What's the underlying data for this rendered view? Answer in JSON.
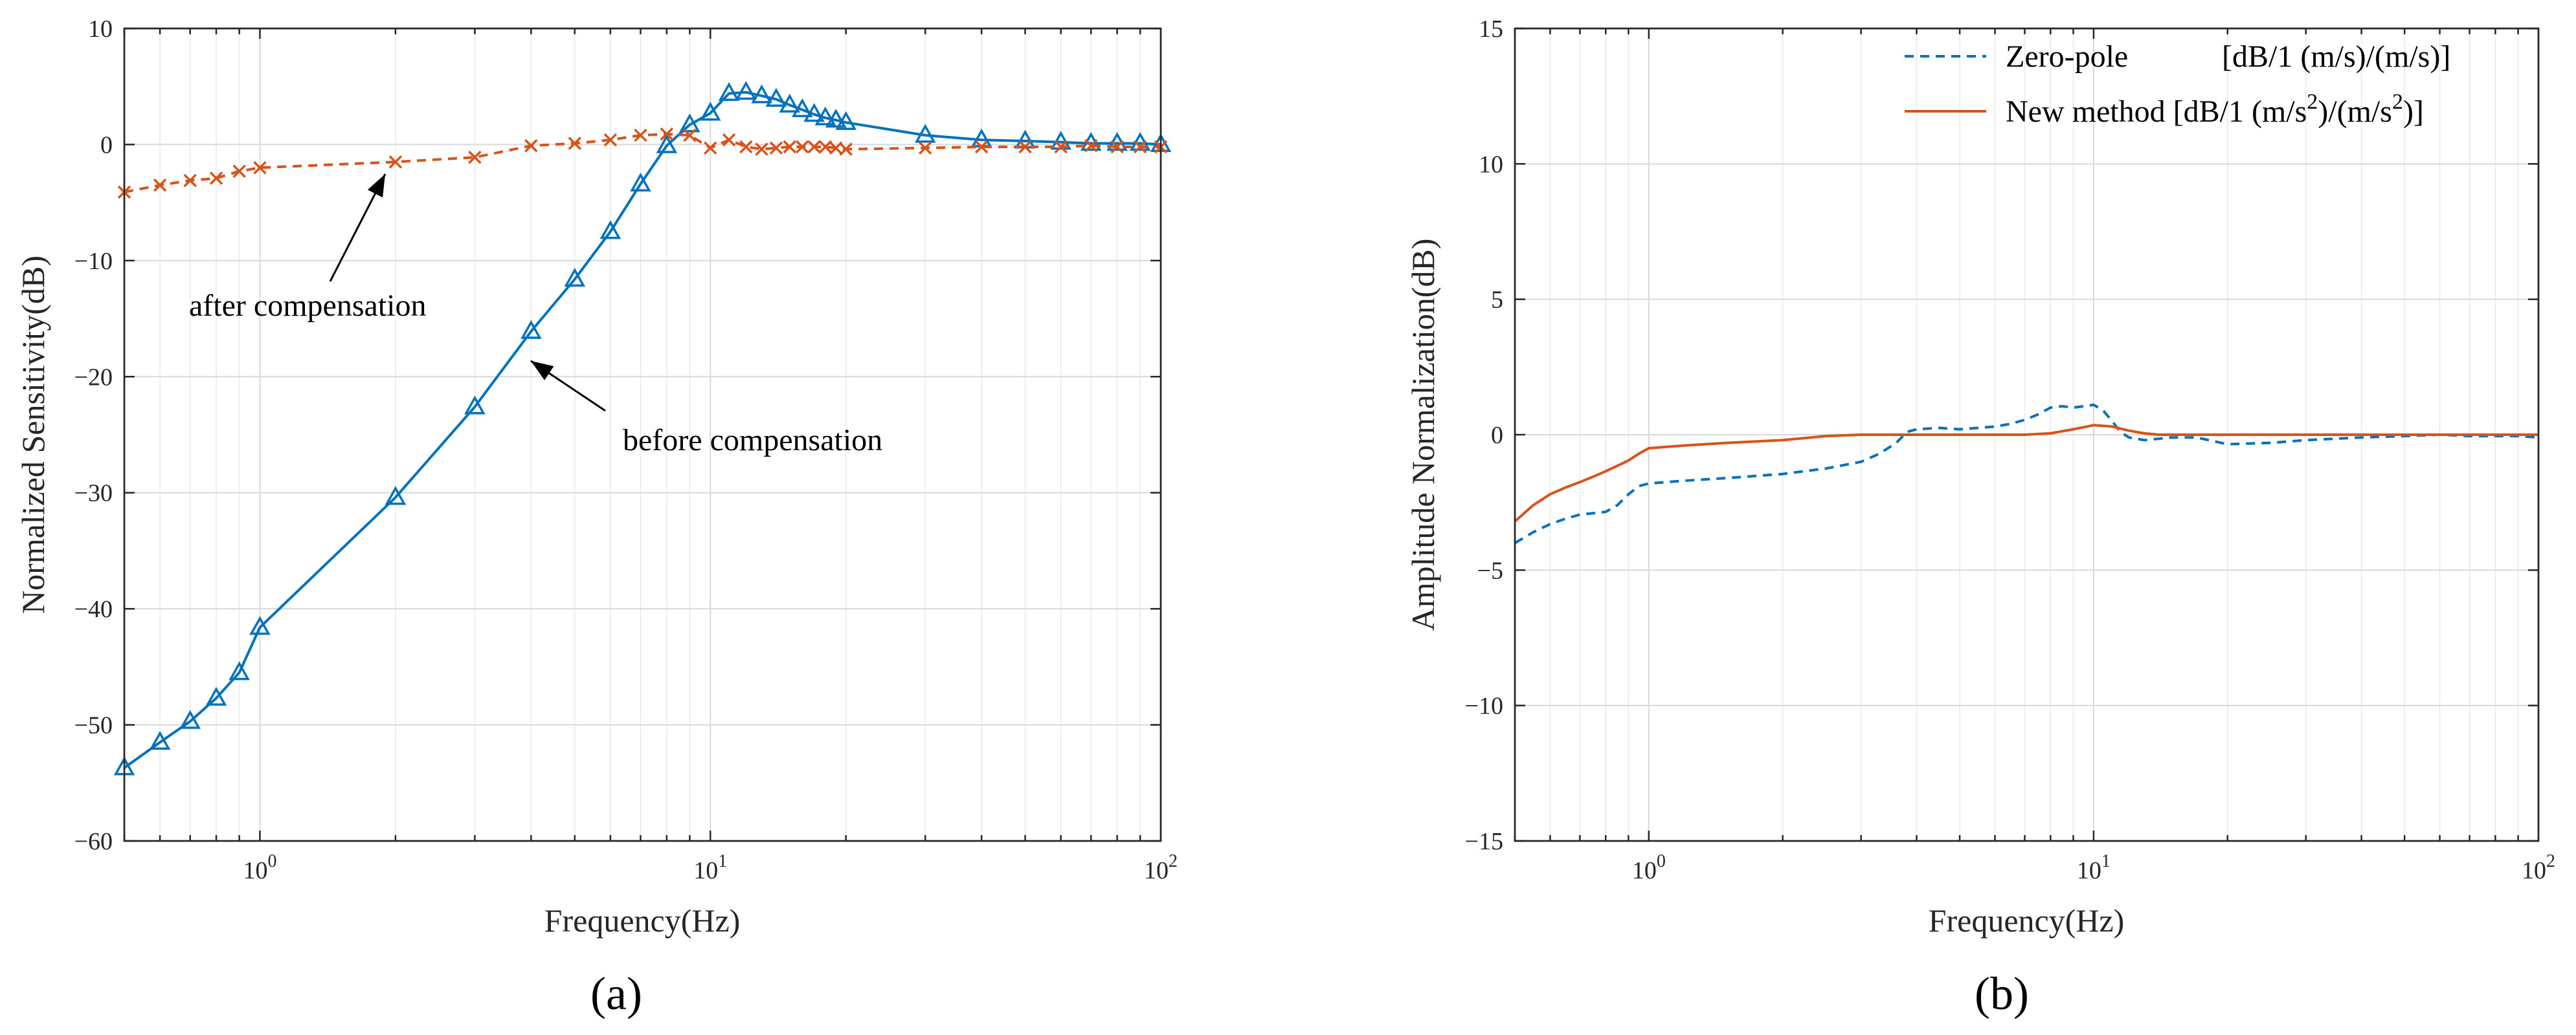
{
  "chart_data": [
    {
      "type": "line",
      "panel_label": "(a)",
      "xlabel": "Frequency(Hz)",
      "ylabel": "Normalized Sensitivity(dB)",
      "xscale": "log",
      "xlim": [
        0.5,
        100
      ],
      "ylim": [
        -60,
        10
      ],
      "yticks": [
        10,
        0,
        -10,
        -20,
        -30,
        -40,
        -50,
        -60
      ],
      "ytick_labels": [
        "10",
        "0",
        "−10",
        "−20",
        "−30",
        "−40",
        "−50",
        "−60"
      ],
      "xticks": [
        1,
        10,
        100
      ],
      "xtick_bases": [
        "10",
        "10",
        "10"
      ],
      "xtick_exponents": [
        "0",
        "1",
        "2"
      ],
      "grid": true,
      "series": [
        {
          "name": "before compensation",
          "color": "#0072BD",
          "line_style": "solid",
          "marker": "triangle",
          "x": [
            0.5,
            0.6,
            0.7,
            0.8,
            0.9,
            1,
            2,
            3,
            4,
            5,
            6,
            7,
            8,
            9,
            10,
            11,
            12,
            13,
            14,
            15,
            16,
            17,
            18,
            19,
            20,
            30,
            40,
            50,
            60,
            70,
            80,
            90,
            100
          ],
          "y": [
            -53.7,
            -51.5,
            -49.7,
            -47.7,
            -45.5,
            -41.6,
            -30.4,
            -22.6,
            -16.1,
            -11.6,
            -7.5,
            -3.4,
            -0.1,
            1.7,
            2.7,
            4.4,
            4.5,
            4.2,
            3.9,
            3.4,
            3.0,
            2.6,
            2.3,
            2.1,
            1.9,
            0.8,
            0.4,
            0.3,
            0.2,
            0.1,
            0.1,
            0.1,
            0.0
          ]
        },
        {
          "name": "after compensation",
          "color": "#D95319",
          "line_style": "dashed",
          "marker": "x",
          "x": [
            0.5,
            0.6,
            0.7,
            0.8,
            0.9,
            1,
            2,
            3,
            4,
            5,
            6,
            7,
            8,
            9,
            10,
            11,
            12,
            13,
            14,
            15,
            16,
            17,
            18,
            19,
            20,
            30,
            40,
            50,
            60,
            70,
            80,
            90,
            100
          ],
          "y": [
            -4.1,
            -3.5,
            -3.1,
            -2.9,
            -2.3,
            -2.0,
            -1.5,
            -1.1,
            -0.1,
            0.1,
            0.4,
            0.8,
            0.9,
            0.8,
            -0.3,
            0.4,
            -0.2,
            -0.4,
            -0.3,
            -0.2,
            -0.2,
            -0.2,
            -0.2,
            -0.3,
            -0.4,
            -0.3,
            -0.2,
            -0.2,
            -0.2,
            -0.1,
            -0.2,
            -0.2,
            -0.2
          ]
        }
      ],
      "annotations": [
        {
          "text": "after compensation",
          "arrow_to": [
            2,
            -1.5
          ]
        },
        {
          "text": "before compensation",
          "arrow_to": [
            4,
            -16.1
          ]
        }
      ]
    },
    {
      "type": "line",
      "panel_label": "(b)",
      "xlabel": "Frequency(Hz)",
      "ylabel": "Amplitude Normalization(dB)",
      "xscale": "log",
      "xlim": [
        0.5,
        100
      ],
      "ylim": [
        -15,
        15
      ],
      "yticks": [
        15,
        10,
        5,
        0,
        -5,
        -10,
        -15
      ],
      "ytick_labels": [
        "15",
        "10",
        "5",
        "0",
        "−5",
        "−10",
        "−15"
      ],
      "xticks": [
        1,
        10,
        100
      ],
      "xtick_bases": [
        "10",
        "10",
        "10"
      ],
      "xtick_exponents": [
        "0",
        "1",
        "2"
      ],
      "grid": true,
      "legend_position": "top-right",
      "legend": [
        {
          "label": "Zero-pole",
          "unit": "[dB/1 (m/s)/(m/s)]"
        },
        {
          "label": "New method",
          "unit_pre": "[dB/1 (m/s",
          "sup1": "2",
          "unit_mid": ")/(m/s",
          "sup2": "2",
          "unit_post": ")]"
        }
      ],
      "series": [
        {
          "name": "Zero-pole",
          "color": "#0072BD",
          "line_style": "dashed",
          "x": [
            0.5,
            0.55,
            0.6,
            0.65,
            0.7,
            0.75,
            0.8,
            0.85,
            0.9,
            0.95,
            1.0,
            1.2,
            1.5,
            2,
            2.5,
            3,
            3.3,
            3.6,
            3.8,
            4,
            4.5,
            5,
            5.5,
            6,
            6.5,
            7,
            7.5,
            8,
            8.5,
            9,
            9.5,
            10,
            10.5,
            11,
            11.5,
            12,
            13,
            14,
            15,
            17,
            20,
            25,
            30,
            40,
            50,
            60,
            70,
            80,
            90,
            100
          ],
          "y": [
            -4.0,
            -3.6,
            -3.3,
            -3.1,
            -2.95,
            -2.9,
            -2.85,
            -2.6,
            -2.2,
            -1.9,
            -1.8,
            -1.7,
            -1.6,
            -1.45,
            -1.25,
            -1.0,
            -0.7,
            -0.3,
            0.1,
            0.2,
            0.25,
            0.2,
            0.25,
            0.3,
            0.4,
            0.55,
            0.75,
            1.0,
            1.05,
            1.0,
            1.05,
            1.1,
            0.9,
            0.5,
            0.1,
            -0.1,
            -0.2,
            -0.15,
            -0.1,
            -0.1,
            -0.35,
            -0.3,
            -0.2,
            -0.1,
            -0.05,
            0.0,
            -0.05,
            -0.05,
            -0.05,
            -0.1
          ]
        },
        {
          "name": "New method",
          "color": "#D95319",
          "line_style": "solid",
          "x": [
            0.5,
            0.55,
            0.6,
            0.65,
            0.7,
            0.75,
            0.8,
            0.85,
            0.9,
            0.95,
            1.0,
            1.2,
            1.5,
            2,
            2.5,
            3,
            4,
            5,
            6,
            7,
            8,
            9,
            10,
            11,
            12,
            13,
            14,
            15,
            20,
            30,
            50,
            70,
            100
          ],
          "y": [
            -3.2,
            -2.6,
            -2.2,
            -1.95,
            -1.75,
            -1.55,
            -1.35,
            -1.15,
            -0.95,
            -0.7,
            -0.5,
            -0.4,
            -0.3,
            -0.2,
            -0.05,
            0.0,
            0.0,
            0.0,
            0.0,
            0.0,
            0.05,
            0.2,
            0.35,
            0.3,
            0.15,
            0.05,
            0.0,
            0.0,
            0.0,
            0.0,
            0.0,
            0.0,
            0.0
          ]
        }
      ]
    }
  ]
}
